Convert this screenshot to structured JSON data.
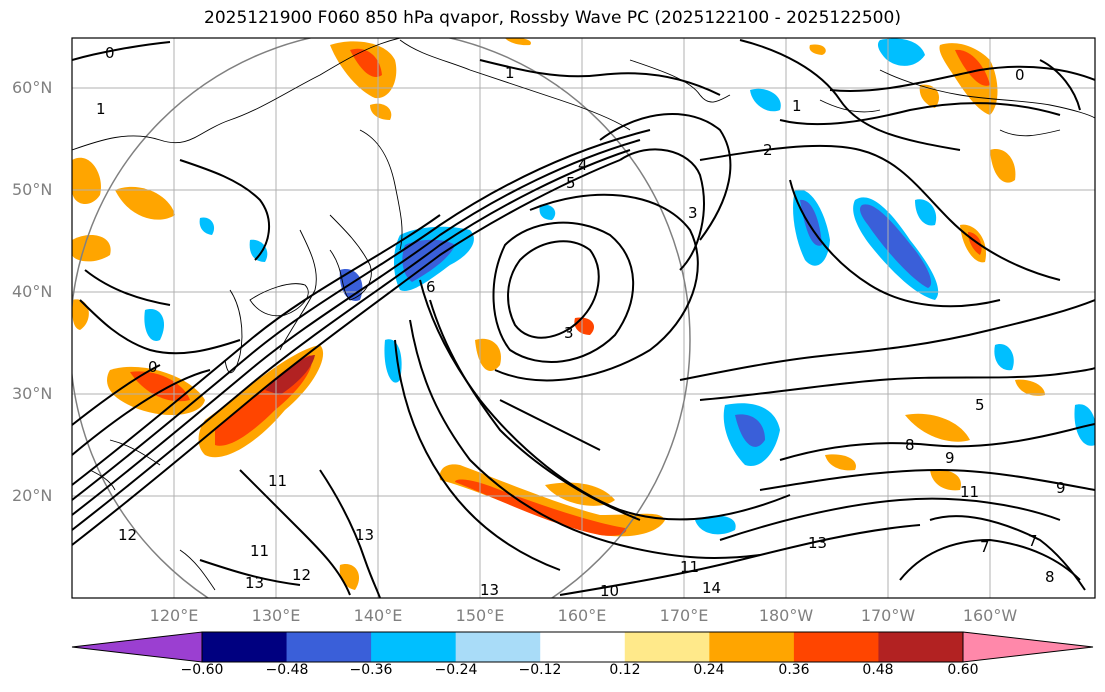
{
  "title": "2025121900 F060 850 hPa qvapor, Rossby Wave PC (2025122100 - 2025122500)",
  "lat_labels": [
    "60°N",
    "50°N",
    "40°N",
    "30°N",
    "20°N"
  ],
  "lon_labels": [
    "120°E",
    "130°E",
    "140°E",
    "150°E",
    "160°E",
    "170°E",
    "180°W",
    "170°W",
    "160°W"
  ],
  "colorbar": {
    "ticks": [
      "−0.60",
      "−0.48",
      "−0.36",
      "−0.24",
      "−0.12",
      "0.12",
      "0.24",
      "0.36",
      "0.48",
      "0.60"
    ],
    "colors": [
      "#9b3fd1",
      "#000080",
      "#3a5fd9",
      "#00bfff",
      "#a9dcf8",
      "#ffffff",
      "#ffe98a",
      "#ffa500",
      "#ff4500",
      "#b22222",
      "#ff88aa"
    ]
  },
  "contour_labels": [
    "0",
    "1",
    "1",
    "1",
    "2",
    "3",
    "3",
    "4",
    "5",
    "5",
    "6",
    "7",
    "7",
    "8",
    "8",
    "9",
    "9",
    "10",
    "11",
    "11",
    "11",
    "11",
    "12",
    "12",
    "13",
    "13",
    "13",
    "13",
    "14",
    "0",
    "0"
  ]
}
